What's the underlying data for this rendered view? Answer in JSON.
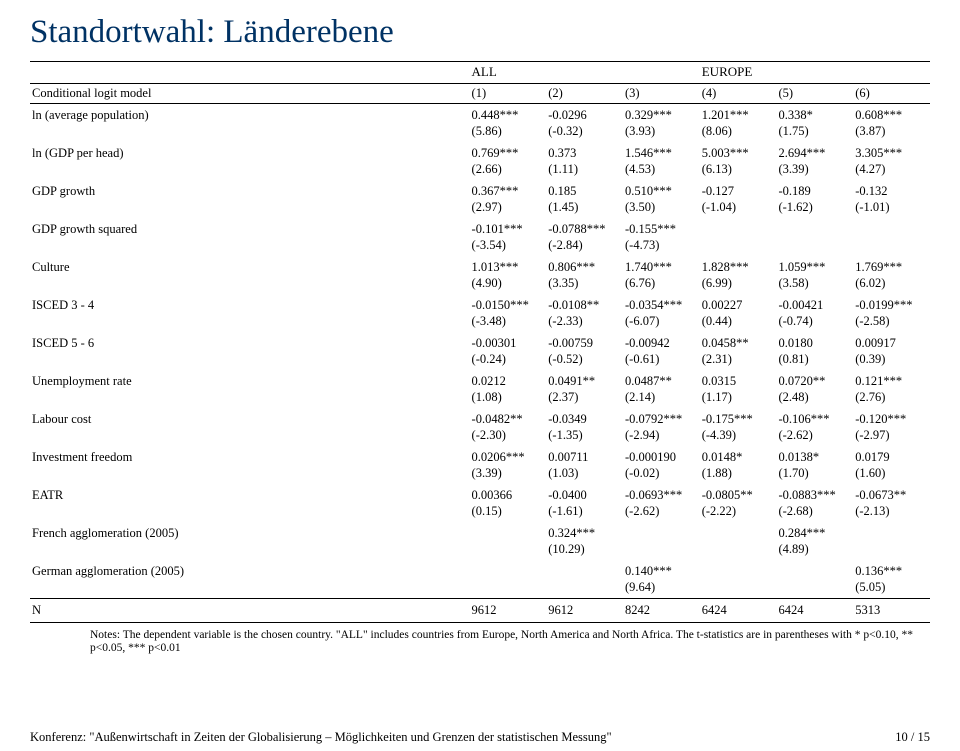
{
  "title": "Standortwahl: Länderebene",
  "group_left": "ALL",
  "group_right": "EUROPE",
  "model_label": "Conditional logit model",
  "cols": [
    "(1)",
    "(2)",
    "(3)",
    "(4)",
    "(5)",
    "(6)"
  ],
  "rows": [
    {
      "l": "ln (average population)",
      "v": [
        "0.448***",
        "-0.0296",
        "0.329***",
        "1.201***",
        "0.338*",
        "0.608***"
      ],
      "t": [
        "(5.86)",
        "(-0.32)",
        "(3.93)",
        "(8.06)",
        "(1.75)",
        "(3.87)"
      ]
    },
    {
      "l": "ln (GDP per head)",
      "v": [
        "0.769***",
        "0.373",
        "1.546***",
        "5.003***",
        "2.694***",
        "3.305***"
      ],
      "t": [
        "(2.66)",
        "(1.11)",
        "(4.53)",
        "(6.13)",
        "(3.39)",
        "(4.27)"
      ]
    },
    {
      "l": "GDP growth",
      "v": [
        "0.367***",
        "0.185",
        "0.510***",
        "-0.127",
        "-0.189",
        "-0.132"
      ],
      "t": [
        "(2.97)",
        "(1.45)",
        "(3.50)",
        "(-1.04)",
        "(-1.62)",
        "(-1.01)"
      ]
    },
    {
      "l": "GDP growth squared",
      "v": [
        "-0.101***",
        "-0.0788***",
        "-0.155***",
        "",
        "",
        ""
      ],
      "t": [
        "(-3.54)",
        "(-2.84)",
        "(-4.73)",
        "",
        "",
        ""
      ]
    },
    {
      "l": "Culture",
      "v": [
        "1.013***",
        "0.806***",
        "1.740***",
        "1.828***",
        "1.059***",
        "1.769***"
      ],
      "t": [
        "(4.90)",
        "(3.35)",
        "(6.76)",
        "(6.99)",
        "(3.58)",
        "(6.02)"
      ]
    },
    {
      "l": "ISCED 3 - 4",
      "v": [
        "-0.0150***",
        "-0.0108**",
        "-0.0354***",
        "0.00227",
        "-0.00421",
        "-0.0199***"
      ],
      "t": [
        "(-3.48)",
        "(-2.33)",
        "(-6.07)",
        "(0.44)",
        "(-0.74)",
        "(-2.58)"
      ]
    },
    {
      "l": "ISCED 5 - 6",
      "v": [
        "-0.00301",
        "-0.00759",
        "-0.00942",
        "0.0458**",
        "0.0180",
        "0.00917"
      ],
      "t": [
        "(-0.24)",
        "(-0.52)",
        "(-0.61)",
        "(2.31)",
        "(0.81)",
        "(0.39)"
      ]
    },
    {
      "l": "Unemployment rate",
      "v": [
        "0.0212",
        "0.0491**",
        "0.0487**",
        "0.0315",
        "0.0720**",
        "0.121***"
      ],
      "t": [
        "(1.08)",
        "(2.37)",
        "(2.14)",
        "(1.17)",
        "(2.48)",
        "(2.76)"
      ]
    },
    {
      "l": "Labour cost",
      "v": [
        "-0.0482**",
        "-0.0349",
        "-0.0792***",
        "-0.175***",
        "-0.106***",
        "-0.120***"
      ],
      "t": [
        "(-2.30)",
        "(-1.35)",
        "(-2.94)",
        "(-4.39)",
        "(-2.62)",
        "(-2.97)"
      ]
    },
    {
      "l": "Investment freedom",
      "v": [
        "0.0206***",
        "0.00711",
        "-0.000190",
        "0.0148*",
        "0.0138*",
        "0.0179"
      ],
      "t": [
        "(3.39)",
        "(1.03)",
        "(-0.02)",
        "(1.88)",
        "(1.70)",
        "(1.60)"
      ]
    },
    {
      "l": "EATR",
      "v": [
        "0.00366",
        "-0.0400",
        "-0.0693***",
        "-0.0805**",
        "-0.0883***",
        "-0.0673**"
      ],
      "t": [
        "(0.15)",
        "(-1.61)",
        "(-2.62)",
        "(-2.22)",
        "(-2.68)",
        "(-2.13)"
      ]
    },
    {
      "l": "French agglomeration (2005)",
      "v": [
        "",
        "0.324***",
        "",
        "",
        "0.284***",
        ""
      ],
      "t": [
        "",
        "(10.29)",
        "",
        "",
        "(4.89)",
        ""
      ]
    },
    {
      "l": "German agglomeration (2005)",
      "v": [
        "",
        "",
        "0.140***",
        "",
        "",
        "0.136***"
      ],
      "t": [
        "",
        "",
        "(9.64)",
        "",
        "",
        "(5.05)"
      ]
    }
  ],
  "n_label": "N",
  "n_values": [
    "9612",
    "9612",
    "8242",
    "6424",
    "6424",
    "5313"
  ],
  "notes": "Notes: The dependent variable is the chosen country. \"ALL\" includes countries from Europe, North America and North Africa. The t-statistics are in parentheses with * p<0.10, ** p<0.05, *** p<0.01",
  "footer_left": "Konferenz: \"Außenwirtschaft in Zeiten der Globalisierung – Möglichkeiten und Grenzen der statistischen Messung\"",
  "footer_right": "10 / 15"
}
